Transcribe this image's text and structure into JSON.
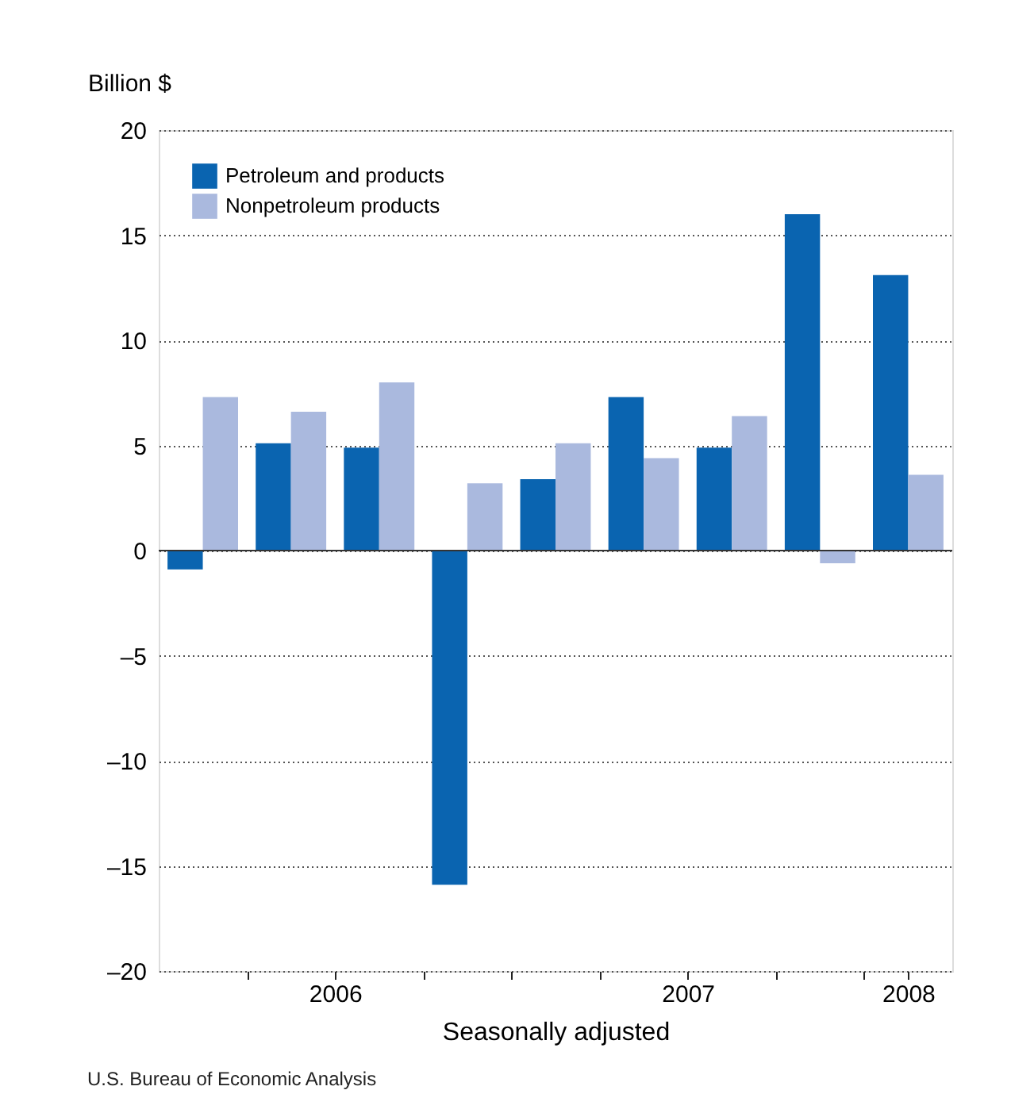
{
  "chart_data": {
    "type": "bar",
    "xlabel": "Seasonally adjusted",
    "ylabel": "Billion $",
    "x": [
      2006.125,
      2006.375,
      2006.625,
      2006.875,
      2007.125,
      2007.375,
      2007.625,
      2007.875,
      2008.125
    ],
    "series": [
      {
        "name": "Petroleum and products",
        "color": "#0a64b0",
        "values": [
          -0.9,
          5.1,
          4.9,
          -15.9,
          3.4,
          7.3,
          4.9,
          16.0,
          13.1
        ]
      },
      {
        "name": "Nonpetroleum products",
        "color": "#aab9de",
        "values": [
          7.3,
          6.6,
          8.0,
          3.2,
          5.1,
          4.4,
          6.4,
          -0.6,
          3.6
        ]
      }
    ],
    "xlim": [
      2006,
      2008.25
    ],
    "xticks": [
      {
        "value": 2006.25,
        "label": null
      },
      {
        "value": 2006.5,
        "label": "2006"
      },
      {
        "value": 2006.75,
        "label": null
      },
      {
        "value": 2007,
        "label": null
      },
      {
        "value": 2007.25,
        "label": null
      },
      {
        "value": 2007.5,
        "label": "2007"
      },
      {
        "value": 2007.75,
        "label": null
      },
      {
        "value": 2008,
        "label": null
      },
      {
        "value": 2008.125,
        "label": "2008"
      }
    ],
    "ylim": [
      -20,
      20
    ],
    "yticks": [
      {
        "value": -20,
        "label": "–20"
      },
      {
        "value": -15,
        "label": "–15"
      },
      {
        "value": -10,
        "label": "–10"
      },
      {
        "value": -5,
        "label": "–5"
      },
      0,
      5,
      10,
      15,
      20
    ],
    "grid": "y",
    "legend": "top left",
    "annotations": [
      "U.S. Bureau of Economic Analysis"
    ]
  }
}
